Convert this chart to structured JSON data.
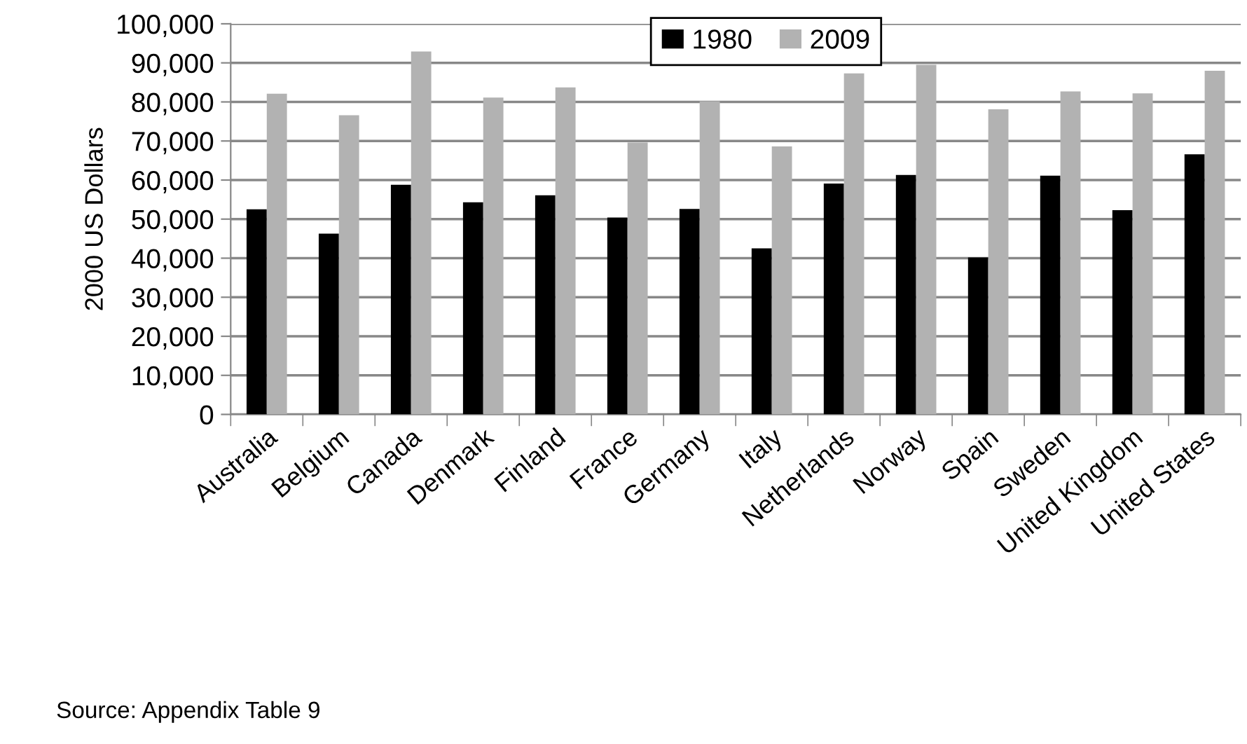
{
  "chart_data": {
    "type": "bar",
    "ylabel": "2000 US Dollars",
    "categories": [
      "Australia",
      "Belgium",
      "Canada",
      "Denmark",
      "Finland",
      "France",
      "Germany",
      "Italy",
      "Netherlands",
      "Norway",
      "Spain",
      "Sweden",
      "United Kingdom",
      "United States"
    ],
    "series": [
      {
        "name": "1980",
        "color": "#000000",
        "values": [
          52500,
          46300,
          58800,
          54300,
          56100,
          50400,
          52600,
          42500,
          59100,
          61300,
          40200,
          61100,
          52300,
          66600
        ]
      },
      {
        "name": "2009",
        "color": "#b2b2b2",
        "values": [
          82100,
          76600,
          92900,
          81100,
          83700,
          69600,
          80200,
          68600,
          87300,
          89500,
          78100,
          82700,
          82200,
          88000
        ]
      }
    ],
    "ylim": [
      0,
      100000
    ],
    "yticks": [
      {
        "value": 0,
        "label": "0"
      },
      {
        "value": 10000,
        "label": "10,000"
      },
      {
        "value": 20000,
        "label": "20,000"
      },
      {
        "value": 30000,
        "label": "30,000"
      },
      {
        "value": 40000,
        "label": "40,000"
      },
      {
        "value": 50000,
        "label": "50,000"
      },
      {
        "value": 60000,
        "label": "60,000"
      },
      {
        "value": 70000,
        "label": "70,000"
      },
      {
        "value": 80000,
        "label": "80,000"
      },
      {
        "value": 90000,
        "label": "90,000"
      },
      {
        "value": 100000,
        "label": "100,000"
      }
    ],
    "grid": "y",
    "legend": "top",
    "annotations": [
      "Source: Appendix Table 9"
    ]
  }
}
